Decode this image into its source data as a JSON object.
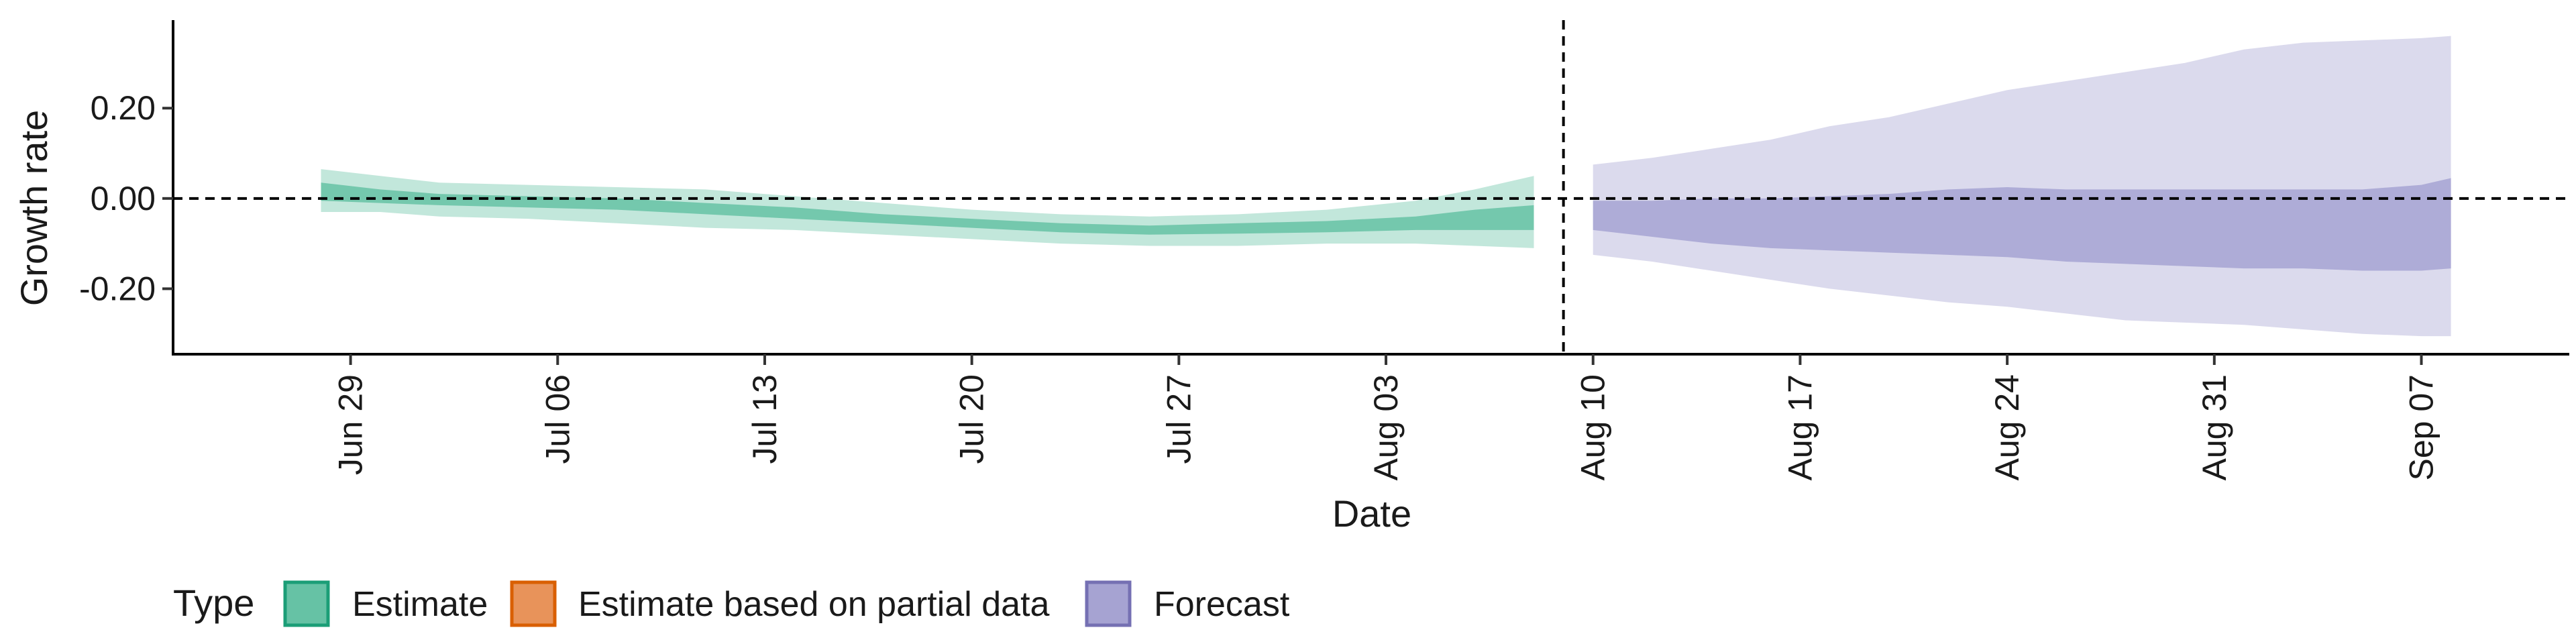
{
  "chart_data": {
    "type": "area",
    "xlabel": "Date",
    "ylabel": "Growth rate",
    "x_tick_labels": [
      "Jun 29",
      "Jul 06",
      "Jul 13",
      "Jul 20",
      "Jul 27",
      "Aug 03",
      "Aug 10",
      "Aug 17",
      "Aug 24",
      "Aug 31",
      "Sep 07"
    ],
    "x_tick_dates": [
      "2020-06-29",
      "2020-07-06",
      "2020-07-13",
      "2020-07-20",
      "2020-07-27",
      "2020-08-03",
      "2020-08-10",
      "2020-08-17",
      "2020-08-24",
      "2020-08-31",
      "2020-09-07"
    ],
    "y_ticks": [
      -0.2,
      0.0,
      0.2
    ],
    "y_tick_labels": [
      "-0.20",
      "0.00",
      "0.20"
    ],
    "xlim": [
      "2020-06-23",
      "2020-09-12"
    ],
    "ylim": [
      -0.345,
      0.395
    ],
    "reference_line_y": 0.0,
    "reference_line_date": "2020-08-09",
    "grid": false,
    "legend_position": "bottom",
    "legend": {
      "title": "Type",
      "entries": [
        {
          "label": "Estimate",
          "fill": "#66c2a5",
          "stroke": "#1b9e77"
        },
        {
          "label": "Estimate based on partial data",
          "fill": "#e8935a",
          "stroke": "#d95f02"
        },
        {
          "label": "Forecast",
          "fill": "#a6a3d2",
          "stroke": "#7570b3"
        }
      ]
    },
    "series": [
      {
        "name": "Estimate",
        "color": "#1b9e77",
        "x": [
          "2020-06-28",
          "2020-06-30",
          "2020-07-02",
          "2020-07-05",
          "2020-07-08",
          "2020-07-11",
          "2020-07-14",
          "2020-07-17",
          "2020-07-20",
          "2020-07-23",
          "2020-07-26",
          "2020-07-29",
          "2020-08-01",
          "2020-08-04",
          "2020-08-06",
          "2020-08-08"
        ],
        "outer_upper": [
          0.065,
          0.05,
          0.035,
          0.03,
          0.025,
          0.02,
          0.005,
          -0.01,
          -0.025,
          -0.035,
          -0.04,
          -0.035,
          -0.025,
          -0.005,
          0.02,
          0.05
        ],
        "outer_lower": [
          -0.03,
          -0.03,
          -0.04,
          -0.045,
          -0.055,
          -0.065,
          -0.07,
          -0.08,
          -0.09,
          -0.1,
          -0.105,
          -0.105,
          -0.1,
          -0.1,
          -0.105,
          -0.11
        ],
        "inner_upper": [
          0.035,
          0.02,
          0.01,
          0.005,
          0.0,
          -0.01,
          -0.02,
          -0.035,
          -0.045,
          -0.055,
          -0.06,
          -0.055,
          -0.05,
          -0.04,
          -0.025,
          -0.015
        ],
        "inner_lower": [
          -0.005,
          -0.01,
          -0.015,
          -0.02,
          -0.025,
          -0.035,
          -0.045,
          -0.055,
          -0.065,
          -0.075,
          -0.08,
          -0.078,
          -0.075,
          -0.07,
          -0.07,
          -0.07
        ]
      },
      {
        "name": "Forecast",
        "color": "#7570b3",
        "x": [
          "2020-08-10",
          "2020-08-12",
          "2020-08-14",
          "2020-08-16",
          "2020-08-18",
          "2020-08-20",
          "2020-08-22",
          "2020-08-24",
          "2020-08-26",
          "2020-08-28",
          "2020-08-30",
          "2020-09-01",
          "2020-09-03",
          "2020-09-05",
          "2020-09-07",
          "2020-09-08"
        ],
        "outer_upper": [
          0.075,
          0.09,
          0.11,
          0.13,
          0.16,
          0.18,
          0.21,
          0.24,
          0.26,
          0.28,
          0.3,
          0.33,
          0.345,
          0.35,
          0.355,
          0.36
        ],
        "outer_lower": [
          -0.125,
          -0.14,
          -0.16,
          -0.18,
          -0.2,
          -0.215,
          -0.23,
          -0.24,
          -0.255,
          -0.27,
          -0.275,
          -0.28,
          -0.29,
          -0.3,
          -0.305,
          -0.305
        ],
        "inner_upper": [
          -0.005,
          -0.005,
          0.0,
          0.0,
          0.005,
          0.01,
          0.02,
          0.025,
          0.02,
          0.02,
          0.02,
          0.02,
          0.02,
          0.02,
          0.03,
          0.045
        ],
        "inner_lower": [
          -0.07,
          -0.085,
          -0.1,
          -0.11,
          -0.115,
          -0.12,
          -0.125,
          -0.13,
          -0.14,
          -0.145,
          -0.15,
          -0.155,
          -0.155,
          -0.16,
          -0.16,
          -0.155
        ]
      }
    ]
  }
}
